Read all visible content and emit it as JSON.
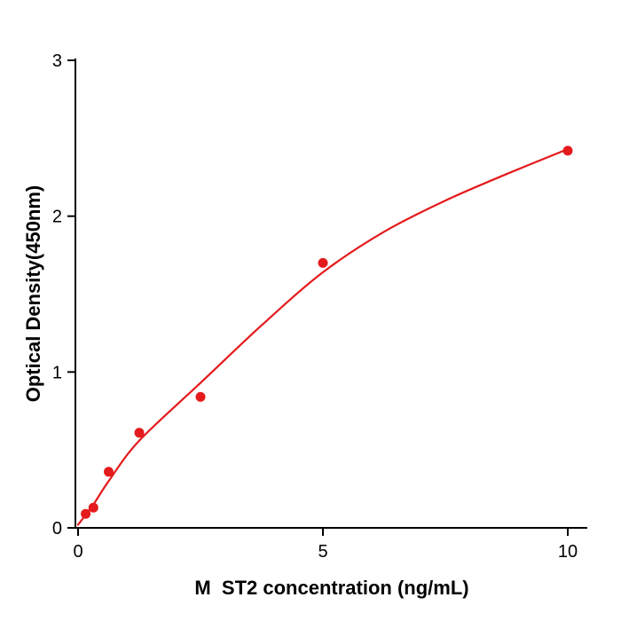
{
  "chart_data": {
    "type": "scatter",
    "title": "",
    "xlabel": "M  ST2 concentration (ng/mL)",
    "ylabel": "Optical Density(450nm)",
    "xlim": [
      0,
      10
    ],
    "ylim": [
      0,
      3
    ],
    "x_ticks": [
      0,
      5,
      10
    ],
    "y_ticks": [
      0,
      1,
      2,
      3
    ],
    "grid": false,
    "legend": "none",
    "color": "#e41a1c",
    "series": [
      {
        "name": "measured-points",
        "type": "scatter",
        "x": [
          0.156,
          0.3125,
          0.625,
          1.25,
          2.5,
          5,
          10
        ],
        "y": [
          0.09,
          0.13,
          0.36,
          0.61,
          0.84,
          1.7,
          2.42
        ]
      },
      {
        "name": "fitted-curve",
        "type": "line",
        "x": [
          0,
          0.3125,
          0.625,
          1.25,
          2.5,
          3.75,
          5,
          6.25,
          7.5,
          8.75,
          10
        ],
        "y": [
          0.02,
          0.15,
          0.3,
          0.56,
          0.93,
          1.3,
          1.64,
          1.9,
          2.1,
          2.27,
          2.43
        ]
      }
    ]
  }
}
